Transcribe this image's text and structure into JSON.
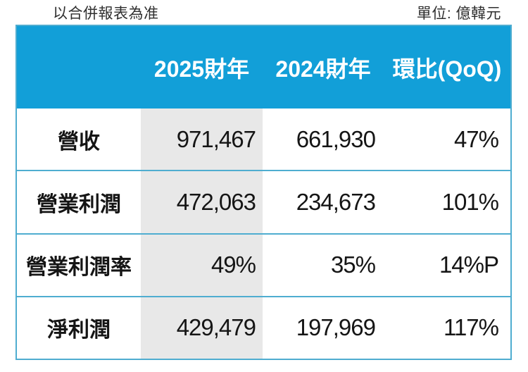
{
  "notes": {
    "left": "以合併報表為准",
    "right": "單位: 億韓元"
  },
  "table": {
    "columns": [
      "",
      "2025財年",
      "2024財年",
      "環比(QoQ)"
    ],
    "rows": [
      {
        "label": "營收",
        "fy2025": "971,467",
        "fy2024": "661,930",
        "qoq": "47%"
      },
      {
        "label": "營業利潤",
        "fy2025": "472,063",
        "fy2024": "234,673",
        "qoq": "101%"
      },
      {
        "label": "營業利潤率",
        "fy2025": "49%",
        "fy2024": "35%",
        "qoq": "14%P"
      },
      {
        "label": "淨利潤",
        "fy2025": "429,479",
        "fy2024": "197,969",
        "qoq": "117%"
      }
    ]
  },
  "chart_data": {
    "type": "table",
    "title": "",
    "columns": [
      "",
      "2025財年",
      "2024財年",
      "環比(QoQ)"
    ],
    "rows": [
      [
        "營收",
        "971,467",
        "661,930",
        "47%"
      ],
      [
        "營業利潤",
        "472,063",
        "234,673",
        "101%"
      ],
      [
        "營業利潤率",
        "49%",
        "35%",
        "14%P"
      ],
      [
        "淨利潤",
        "429,479",
        "197,969",
        "117%"
      ]
    ],
    "numeric_values": {
      "fy2025": [
        971467,
        472063,
        0.49,
        429479
      ],
      "fy2024": [
        661930,
        234673,
        0.35,
        197969
      ],
      "qoq": [
        "47%",
        "101%",
        "14%P",
        "117%"
      ]
    },
    "notes": [
      "以合併報表為准",
      "單位: 億韓元"
    ],
    "layout": {
      "header_fill": "cyan",
      "highlighted_column": "2025財年",
      "gridlines": "horizontal-only"
    }
  },
  "colors": {
    "header_bg": "#129fd8",
    "border": "#4fadd0",
    "highlight_column_bg": "#e8e8e8",
    "header_text": "#ffffff",
    "body_text": "#151515",
    "note_text": "#2e2e2e"
  }
}
